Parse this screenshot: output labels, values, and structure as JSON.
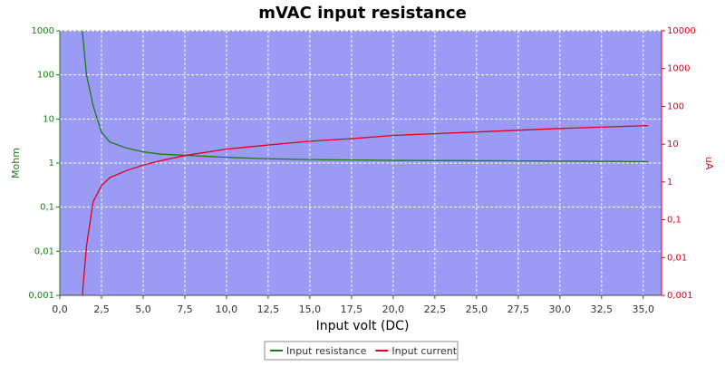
{
  "chart_data": {
    "type": "line",
    "title": "mVAC input resistance",
    "xlabel": "Input volt (DC)",
    "ylabel": "Mohm",
    "y2label": "uA",
    "xlim": [
      0,
      36.1
    ],
    "xticks": [
      {
        "value": 0,
        "label": "0,0"
      },
      {
        "value": 2.5,
        "label": "2,5"
      },
      {
        "value": 5,
        "label": "5,0"
      },
      {
        "value": 7.5,
        "label": "7,5"
      },
      {
        "value": 10,
        "label": "10,0"
      },
      {
        "value": 12.5,
        "label": "12,5"
      },
      {
        "value": 15,
        "label": "15,0"
      },
      {
        "value": 17.5,
        "label": "17,5"
      },
      {
        "value": 20,
        "label": "20,0"
      },
      {
        "value": 22.5,
        "label": "22,5"
      },
      {
        "value": 25,
        "label": "25,0"
      },
      {
        "value": 27.5,
        "label": "27,5"
      },
      {
        "value": 30,
        "label": "30,0"
      },
      {
        "value": 32.5,
        "label": "32,5"
      },
      {
        "value": 35,
        "label": "35,0"
      }
    ],
    "ylim": [
      0.001,
      1000
    ],
    "ylog": true,
    "yticks": [
      1000,
      100,
      10,
      1,
      {
        "value": 0.1,
        "label": "0,1"
      },
      {
        "value": 0.01,
        "label": "0,01"
      },
      {
        "value": 0.001,
        "label": "0,001"
      }
    ],
    "y2lim": [
      0.001,
      10000
    ],
    "y2log": true,
    "y2ticks": [
      10000,
      1000,
      100,
      10,
      1,
      {
        "value": 0.1,
        "label": "0,1"
      },
      {
        "value": 0.01,
        "label": "0,01"
      },
      {
        "value": 0.001,
        "label": "0,001"
      }
    ],
    "grid": true,
    "legend": "bottom",
    "series": [
      {
        "name": "Input resistance",
        "color": "#1b7a1b",
        "x": [
          1.35,
          1.6,
          2.0,
          2.5,
          3,
          4,
          5,
          6,
          7.5,
          10,
          12.5,
          15,
          20,
          28,
          35.3
        ],
        "values": [
          1000,
          100,
          20,
          5,
          3,
          2.2,
          1.8,
          1.6,
          1.5,
          1.35,
          1.25,
          1.2,
          1.15,
          1.12,
          1.08
        ]
      },
      {
        "name": "Input current",
        "color": "#e0001a",
        "axis": "y2",
        "x": [
          1.35,
          1.6,
          2.0,
          2.5,
          3,
          4,
          5,
          6,
          7.5,
          10,
          12.5,
          15,
          17.5,
          20,
          25,
          30,
          35.3
        ],
        "values": [
          0.001,
          0.02,
          0.3,
          0.8,
          1.3,
          2,
          2.8,
          3.6,
          5,
          7.4,
          9.5,
          12,
          14,
          17,
          21,
          26,
          31
        ]
      }
    ]
  }
}
